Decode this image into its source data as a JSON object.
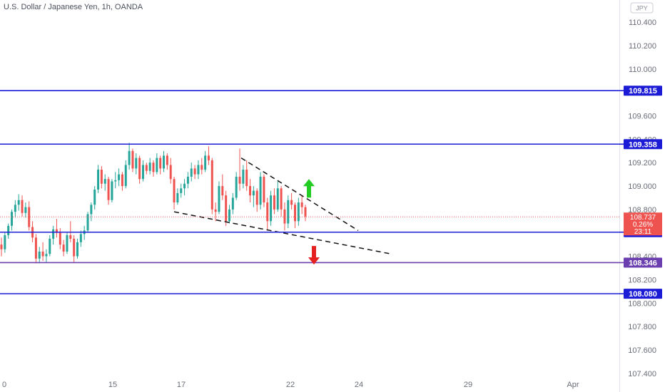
{
  "header": {
    "title": "U.S. Dollar / Japanese Yen, 1h, OANDA"
  },
  "currency_badge": "JPY",
  "current_price": {
    "value": "108.737",
    "change": "0.26%",
    "countdown": "23:11"
  },
  "chart_data": {
    "type": "candlestick",
    "title": "U.S. Dollar / Japanese Yen, 1h, OANDA",
    "ylim": [
      107.35,
      110.48
    ],
    "y_ticks": [
      110.4,
      110.2,
      110.0,
      109.6,
      109.4,
      109.2,
      109.0,
      108.8,
      108.4,
      108.2,
      108.0,
      107.8,
      107.6,
      107.4
    ],
    "y_tick_labels": [
      "110.400",
      "110.200",
      "110.000",
      "109.600",
      "109.400",
      "109.200",
      "109.000",
      "108.800",
      "108.400",
      "108.200",
      "108.000",
      "107.800",
      "107.600",
      "107.400"
    ],
    "x_tick_labels": [
      "0",
      "15",
      "17",
      "22",
      "24",
      "29",
      "Apr"
    ],
    "horizontal_levels": [
      {
        "value": 109.815,
        "label": "109.815",
        "color": "#1c1cd6"
      },
      {
        "value": 109.358,
        "label": "109.358",
        "color": "#1c1cd6"
      },
      {
        "value": 108.606,
        "label": "108.606",
        "color": "#1c1cd6"
      },
      {
        "value": 108.346,
        "label": "108.346",
        "color": "#6b3fb0"
      },
      {
        "value": 108.08,
        "label": "108.080",
        "color": "#1c1cd6"
      }
    ],
    "colors": {
      "up": "#26a69a",
      "down": "#ef5350",
      "level": "#1c1cd6",
      "current": "#ef5350",
      "arrow_up": "#22cc22",
      "arrow_down": "#e52020"
    },
    "candles": [
      [
        108.5,
        108.56,
        108.4,
        108.46
      ],
      [
        108.46,
        108.6,
        108.43,
        108.58
      ],
      [
        108.58,
        108.68,
        108.55,
        108.66
      ],
      [
        108.66,
        108.8,
        108.62,
        108.78
      ],
      [
        108.78,
        108.88,
        108.73,
        108.84
      ],
      [
        108.84,
        108.93,
        108.79,
        108.88
      ],
      [
        108.88,
        108.92,
        108.74,
        108.77
      ],
      [
        108.77,
        108.86,
        108.73,
        108.82
      ],
      [
        108.82,
        108.87,
        108.62,
        108.65
      ],
      [
        108.65,
        108.7,
        108.52,
        108.56
      ],
      [
        108.56,
        108.59,
        108.34,
        108.38
      ],
      [
        108.38,
        108.48,
        108.34,
        108.44
      ],
      [
        108.44,
        108.52,
        108.36,
        108.4
      ],
      [
        108.4,
        108.46,
        108.35,
        108.42
      ],
      [
        108.42,
        108.58,
        108.4,
        108.55
      ],
      [
        108.55,
        108.66,
        108.5,
        108.63
      ],
      [
        108.63,
        108.72,
        108.56,
        108.6
      ],
      [
        108.6,
        108.64,
        108.46,
        108.5
      ],
      [
        108.5,
        108.54,
        108.4,
        108.44
      ],
      [
        108.44,
        108.6,
        108.42,
        108.58
      ],
      [
        108.58,
        108.7,
        108.52,
        108.55
      ],
      [
        108.55,
        108.58,
        108.35,
        108.4
      ],
      [
        108.4,
        108.55,
        108.38,
        108.52
      ],
      [
        108.52,
        108.62,
        108.48,
        108.59
      ],
      [
        108.59,
        108.66,
        108.54,
        108.62
      ],
      [
        108.62,
        108.78,
        108.6,
        108.76
      ],
      [
        108.76,
        108.86,
        108.7,
        108.84
      ],
      [
        108.84,
        109.0,
        108.8,
        108.97
      ],
      [
        108.97,
        109.18,
        108.94,
        109.14
      ],
      [
        109.14,
        109.17,
        108.98,
        109.02
      ],
      [
        109.02,
        109.1,
        108.96,
        109.06
      ],
      [
        109.06,
        109.08,
        108.84,
        108.88
      ],
      [
        108.88,
        109.06,
        108.86,
        109.04
      ],
      [
        109.04,
        109.12,
        108.98,
        109.05
      ],
      [
        109.05,
        109.15,
        109.0,
        109.1
      ],
      [
        109.1,
        109.12,
        108.96,
        109.0
      ],
      [
        109.0,
        109.22,
        108.98,
        109.18
      ],
      [
        109.18,
        109.37,
        109.14,
        109.3
      ],
      [
        109.3,
        109.32,
        109.12,
        109.15
      ],
      [
        109.15,
        109.28,
        109.1,
        109.24
      ],
      [
        109.24,
        109.26,
        109.02,
        109.06
      ],
      [
        109.06,
        109.22,
        109.04,
        109.18
      ],
      [
        109.18,
        109.2,
        109.1,
        109.13
      ],
      [
        109.13,
        109.24,
        109.1,
        109.2
      ],
      [
        109.2,
        109.22,
        109.08,
        109.12
      ],
      [
        109.12,
        109.28,
        109.1,
        109.24
      ],
      [
        109.24,
        109.26,
        109.1,
        109.15
      ],
      [
        109.15,
        109.3,
        109.12,
        109.26
      ],
      [
        109.26,
        109.28,
        109.14,
        109.18
      ],
      [
        109.18,
        109.24,
        109.02,
        109.06
      ],
      [
        109.06,
        109.08,
        108.8,
        108.86
      ],
      [
        108.86,
        108.98,
        108.84,
        108.94
      ],
      [
        108.94,
        109.02,
        108.9,
        108.98
      ],
      [
        108.98,
        109.06,
        108.92,
        109.02
      ],
      [
        109.02,
        109.12,
        108.98,
        109.08
      ],
      [
        109.08,
        109.2,
        109.04,
        109.15
      ],
      [
        109.15,
        109.18,
        109.06,
        109.1
      ],
      [
        109.1,
        109.22,
        109.06,
        109.18
      ],
      [
        109.18,
        109.24,
        109.1,
        109.14
      ],
      [
        109.14,
        109.3,
        109.12,
        109.26
      ],
      [
        109.26,
        109.34,
        109.18,
        109.22
      ],
      [
        109.22,
        109.24,
        108.76,
        108.8
      ],
      [
        108.8,
        108.86,
        108.7,
        108.78
      ],
      [
        108.78,
        109.04,
        108.76,
        109.0
      ],
      [
        109.0,
        109.1,
        108.88,
        108.92
      ],
      [
        108.92,
        108.96,
        108.66,
        108.7
      ],
      [
        108.7,
        108.84,
        108.68,
        108.8
      ],
      [
        108.8,
        108.94,
        108.76,
        108.9
      ],
      [
        108.9,
        109.12,
        108.88,
        109.08
      ],
      [
        109.08,
        109.32,
        108.96,
        109.02
      ],
      [
        109.02,
        109.18,
        108.98,
        109.14
      ],
      [
        109.14,
        109.22,
        108.96,
        109.0
      ],
      [
        109.0,
        109.06,
        108.86,
        108.92
      ],
      [
        108.92,
        109.0,
        108.82,
        108.96
      ],
      [
        108.96,
        108.98,
        108.78,
        108.84
      ],
      [
        108.84,
        109.12,
        108.8,
        109.08
      ],
      [
        109.08,
        109.1,
        108.82,
        108.86
      ],
      [
        108.86,
        108.9,
        108.62,
        108.7
      ],
      [
        108.7,
        108.96,
        108.66,
        108.92
      ],
      [
        108.92,
        108.98,
        108.76,
        108.8
      ],
      [
        108.8,
        109.04,
        108.78,
        108.98
      ],
      [
        108.98,
        109.0,
        108.74,
        108.8
      ],
      [
        108.8,
        108.86,
        108.62,
        108.68
      ],
      [
        108.68,
        108.92,
        108.64,
        108.88
      ],
      [
        108.88,
        108.94,
        108.8,
        108.84
      ],
      [
        108.84,
        108.86,
        108.64,
        108.7
      ],
      [
        108.7,
        108.9,
        108.66,
        108.86
      ],
      [
        108.86,
        108.92,
        108.76,
        108.82
      ],
      [
        108.82,
        108.84,
        108.7,
        108.74
      ]
    ],
    "pattern_lines": [
      {
        "from": [
          0.2,
          108.78
        ],
        "to": [
          0.43,
          108.61
        ]
      },
      {
        "from": [
          0.28,
          109.24
        ],
        "to": [
          0.42,
          108.62
        ]
      },
      {
        "from": [
          0.43,
          108.61
        ],
        "to": [
          0.47,
          108.42
        ]
      }
    ]
  }
}
